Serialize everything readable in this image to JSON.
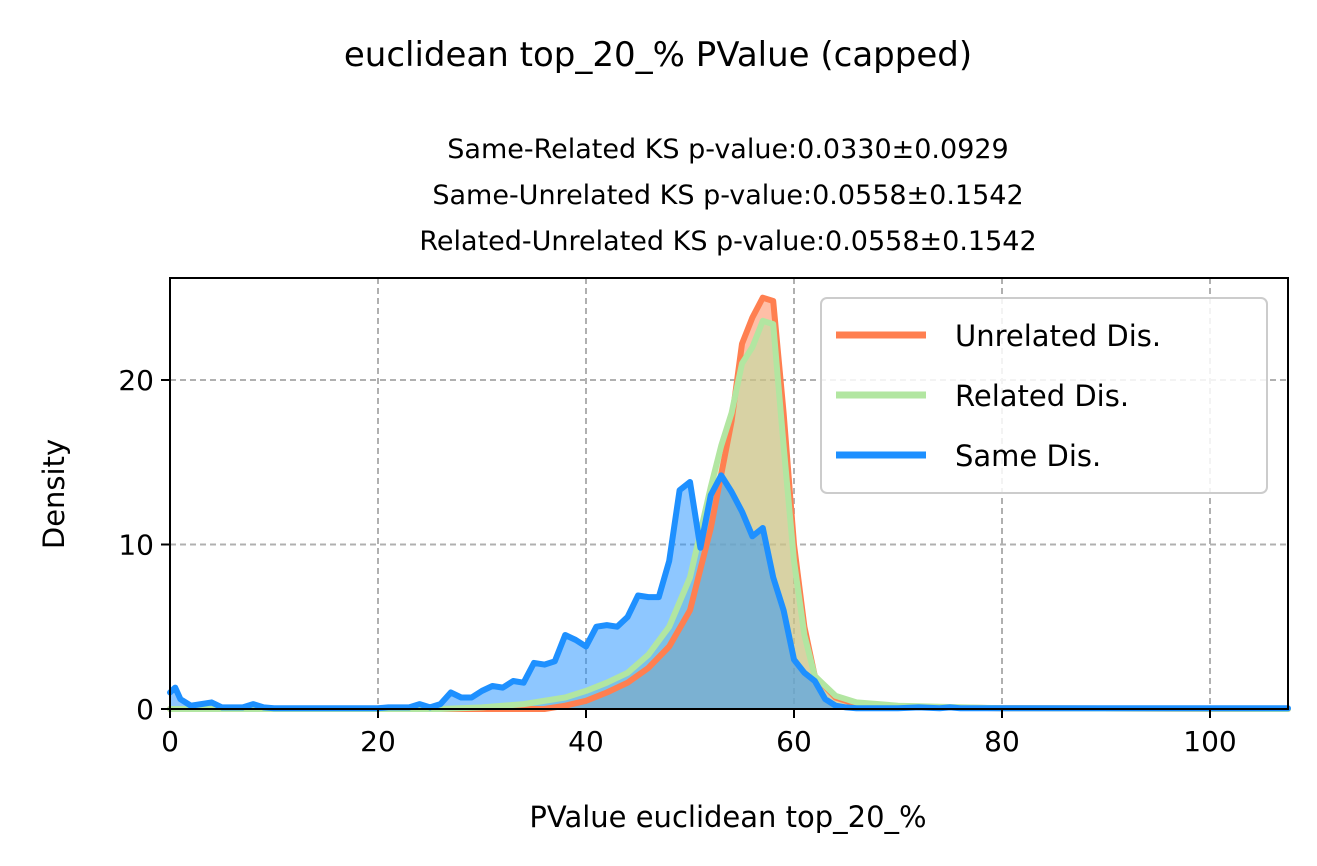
{
  "figure": {
    "suptitle": "euclidean top_20_% PValue (capped)",
    "title_lines": [
      "Same-Related KS p-value:0.0330±0.0929",
      "Same-Unrelated KS p-value:0.0558±0.1542",
      "Related-Unrelated KS p-value:0.0558±0.1542"
    ]
  },
  "chart_data": {
    "type": "area",
    "xlabel": "PValue euclidean top_20_%",
    "ylabel": "Density",
    "xlim": [
      0,
      107.5
    ],
    "ylim": [
      0,
      26.2
    ],
    "xticks": [
      0,
      20,
      40,
      60,
      80,
      100
    ],
    "yticks": [
      0,
      10,
      20
    ],
    "grid": true,
    "legend_position": "top-right",
    "series": [
      {
        "name": "Unrelated Dis.",
        "color": "#ff7f50",
        "fill_color": "#ff7f50",
        "x": [
          0,
          36,
          38,
          40,
          42,
          44,
          46,
          48,
          50,
          52,
          54,
          55,
          56,
          57,
          58,
          59,
          60,
          61,
          62,
          64,
          66,
          70,
          80,
          107.5
        ],
        "y": [
          0,
          0,
          0.2,
          0.5,
          1.0,
          1.6,
          2.5,
          3.8,
          6.0,
          11.0,
          17.5,
          22.2,
          23.8,
          25.0,
          24.8,
          18.0,
          10.0,
          5.0,
          2.0,
          0.7,
          0.3,
          0.15,
          0.05,
          0
        ]
      },
      {
        "name": "Related Dis.",
        "color": "#b2e6a1",
        "fill_color": "#b2e6a1",
        "x": [
          0,
          26,
          30,
          34,
          38,
          40,
          42,
          44,
          46,
          48,
          50,
          52,
          53,
          54,
          55,
          56,
          57,
          58,
          59,
          60,
          61,
          62,
          64,
          66,
          70,
          80,
          107.5
        ],
        "y": [
          0,
          0,
          0.1,
          0.3,
          0.7,
          1.1,
          1.6,
          2.2,
          3.3,
          5.0,
          8.0,
          13.5,
          16.0,
          18.0,
          21.0,
          22.0,
          23.6,
          23.4,
          16.0,
          9.0,
          4.5,
          2.0,
          0.8,
          0.4,
          0.2,
          0.05,
          0
        ]
      },
      {
        "name": "Same Dis.",
        "color": "#1e90ff",
        "fill_color": "#1e90ff",
        "x": [
          0,
          0.5,
          1,
          2,
          3,
          4,
          5,
          6,
          7,
          8,
          9,
          10,
          15,
          20,
          21,
          22,
          23,
          24,
          25,
          26,
          27,
          28,
          29,
          30,
          31,
          32,
          33,
          34,
          35,
          36,
          37,
          38,
          39,
          40,
          41,
          42,
          43,
          44,
          45,
          46,
          47,
          48,
          49,
          50,
          51,
          52,
          53,
          54,
          55,
          56,
          57,
          58,
          59,
          60,
          61,
          62,
          63,
          64,
          65,
          66,
          70,
          72,
          74,
          75,
          76,
          80,
          90,
          100,
          107.5
        ],
        "y": [
          1.0,
          1.3,
          0.6,
          0.2,
          0.3,
          0.4,
          0.1,
          0.1,
          0.1,
          0.3,
          0.1,
          0.05,
          0.05,
          0.05,
          0.1,
          0.1,
          0.1,
          0.3,
          0.1,
          0.3,
          1.0,
          0.7,
          0.7,
          1.1,
          1.4,
          1.3,
          1.7,
          1.6,
          2.8,
          2.7,
          2.9,
          4.5,
          4.2,
          3.8,
          5.0,
          5.1,
          5.0,
          5.6,
          6.9,
          6.8,
          6.8,
          9.0,
          13.3,
          13.8,
          9.8,
          13.0,
          14.2,
          13.2,
          12.0,
          10.5,
          11.0,
          8.0,
          6.0,
          3.0,
          2.2,
          1.7,
          0.6,
          0.2,
          0.1,
          0.05,
          0.05,
          0.1,
          0.05,
          0.1,
          0.05,
          0.05,
          0.05,
          0.05,
          0.05
        ]
      }
    ]
  }
}
